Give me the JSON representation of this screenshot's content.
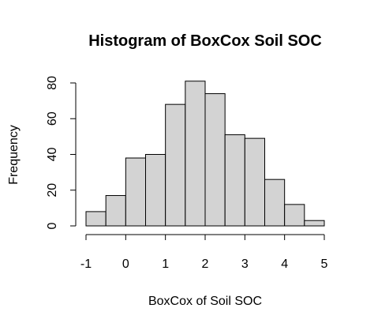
{
  "chart_data": {
    "type": "bar",
    "title": "Histogram of BoxCox Soil SOC",
    "xlabel": "BoxCox of Soil SOC",
    "ylabel": "Frequency",
    "bin_edges": [
      -1,
      -0.5,
      0,
      0.5,
      1,
      1.5,
      2,
      2.5,
      3,
      3.5,
      4,
      4.5,
      5
    ],
    "values": [
      8,
      17,
      38,
      40,
      68,
      81,
      74,
      51,
      49,
      26,
      12,
      3
    ],
    "xlim": [
      -1,
      5
    ],
    "ylim": [
      0,
      80
    ],
    "x_ticks": [
      -1,
      0,
      1,
      2,
      3,
      4,
      5
    ],
    "y_ticks": [
      0,
      20,
      40,
      60,
      80
    ],
    "bar_fill": "#d3d3d3",
    "bar_stroke": "#000000",
    "grid": false
  }
}
